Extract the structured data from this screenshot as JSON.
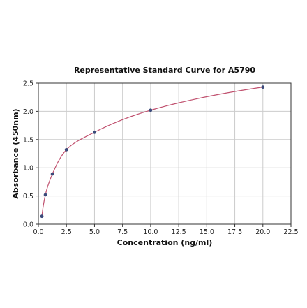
{
  "chart_data": {
    "type": "scatter",
    "title": "Representative Standard Curve for A5790",
    "xlabel": "Concentration (ng/ml)",
    "ylabel": "Absorbance (450nm)",
    "xlim": [
      0,
      22.5
    ],
    "ylim": [
      0,
      2.5
    ],
    "xticks": [
      "0.0",
      "2.5",
      "5.0",
      "7.5",
      "10.0",
      "12.5",
      "15.0",
      "17.5",
      "20.0",
      "22.5"
    ],
    "yticks": [
      "0.0",
      "0.5",
      "1.0",
      "1.5",
      "2.0",
      "2.5"
    ],
    "grid": true,
    "series": [
      {
        "x": [
          0.3125,
          0.625,
          1.25,
          2.5,
          5,
          10,
          20
        ],
        "y": [
          0.14,
          0.52,
          0.89,
          1.32,
          1.63,
          2.02,
          2.43
        ]
      }
    ],
    "fit_curve": true,
    "colors": {
      "points": "#3b4a7a",
      "curve": "#c0506e"
    }
  }
}
